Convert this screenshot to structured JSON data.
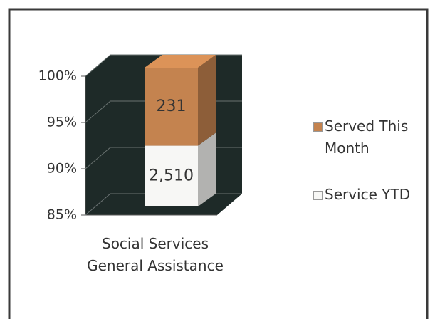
{
  "chart_data": {
    "type": "bar",
    "stacking": "percent",
    "categories": [
      "Social Services General Assistance"
    ],
    "series": [
      {
        "name": "Service YTD",
        "color": "#f7f7f5",
        "values": [
          2510
        ],
        "value_labels": [
          "2,510"
        ]
      },
      {
        "name": "Served This Month",
        "color": "#c4834f",
        "values": [
          231
        ],
        "value_labels": [
          "231"
        ]
      }
    ],
    "ylim": [
      85,
      100
    ],
    "yticks": [
      {
        "value": 85,
        "label": "85%"
      },
      {
        "value": 90,
        "label": "90%"
      },
      {
        "value": 95,
        "label": "95%"
      },
      {
        "value": 100,
        "label": "100%"
      }
    ],
    "grid": true,
    "legend": "right"
  }
}
